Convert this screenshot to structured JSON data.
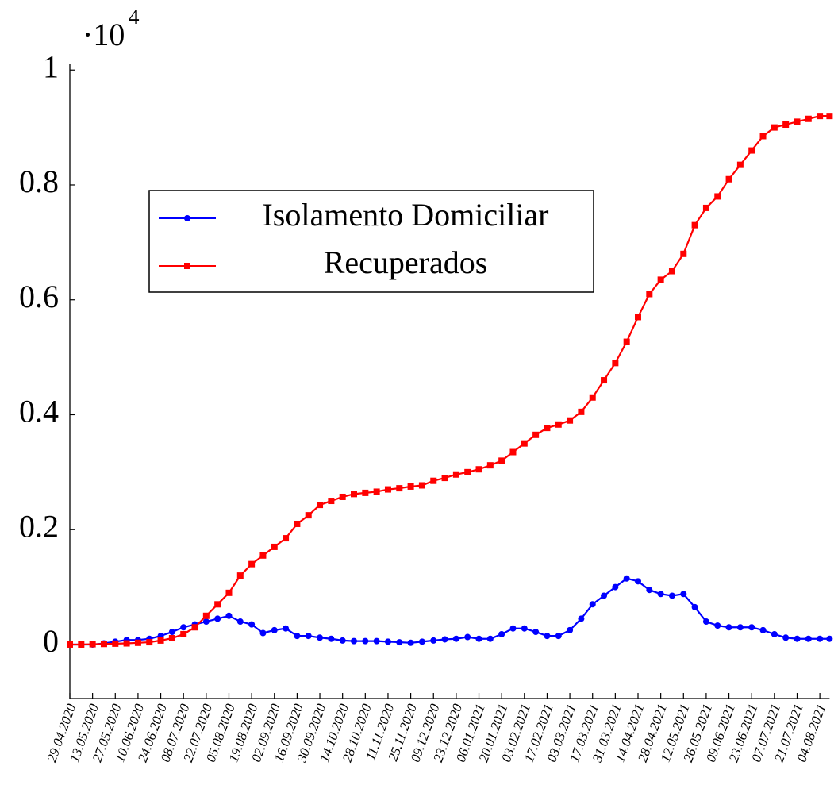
{
  "chart_data": {
    "type": "line",
    "y_multiplier": {
      "base": "·10",
      "exponent": "4"
    },
    "x": [
      "29.04.2020",
      "06.05.2020",
      "13.05.2020",
      "20.05.2020",
      "27.05.2020",
      "03.06.2020",
      "10.06.2020",
      "17.06.2020",
      "24.06.2020",
      "01.07.2020",
      "08.07.2020",
      "15.07.2020",
      "22.07.2020",
      "29.07.2020",
      "05.08.2020",
      "12.08.2020",
      "19.08.2020",
      "26.08.2020",
      "02.09.2020",
      "09.09.2020",
      "16.09.2020",
      "23.09.2020",
      "30.09.2020",
      "07.10.2020",
      "14.10.2020",
      "21.10.2020",
      "28.10.2020",
      "04.11.2020",
      "11.11.2020",
      "18.11.2020",
      "25.11.2020",
      "02.12.2020",
      "09.12.2020",
      "16.12.2020",
      "23.12.2020",
      "30.12.2020",
      "06.01.2021",
      "13.01.2021",
      "20.01.2021",
      "27.01.2021",
      "03.02.2021",
      "10.02.2021",
      "17.02.2021",
      "24.02.2021",
      "03.03.2021",
      "10.03.2021",
      "17.03.2021",
      "24.03.2021",
      "31.03.2021",
      "07.04.2021",
      "14.04.2021",
      "21.04.2021",
      "28.04.2021",
      "05.05.2021",
      "12.05.2021",
      "19.05.2021",
      "26.05.2021",
      "02.06.2021",
      "09.06.2021",
      "16.06.2021",
      "23.06.2021",
      "30.06.2021",
      "07.07.2021",
      "14.07.2021",
      "21.07.2021",
      "28.07.2021",
      "04.08.2021",
      "10.08.2021"
    ],
    "series": [
      {
        "name": "Isolamento Domiciliar",
        "color": "#0000ff",
        "marker": "circle",
        "values": [
          0,
          0,
          0,
          0.002,
          0.005,
          0.008,
          0.008,
          0.01,
          0.015,
          0.022,
          0.03,
          0.035,
          0.04,
          0.045,
          0.05,
          0.04,
          0.035,
          0.02,
          0.025,
          0.028,
          0.015,
          0.015,
          0.012,
          0.01,
          0.007,
          0.006,
          0.006,
          0.006,
          0.005,
          0.004,
          0.003,
          0.005,
          0.007,
          0.009,
          0.01,
          0.013,
          0.01,
          0.01,
          0.018,
          0.028,
          0.028,
          0.022,
          0.015,
          0.015,
          0.025,
          0.045,
          0.07,
          0.085,
          0.1,
          0.115,
          0.11,
          0.095,
          0.088,
          0.085,
          0.088,
          0.065,
          0.04,
          0.033,
          0.03,
          0.03,
          0.03,
          0.025,
          0.018,
          0.012,
          0.01,
          0.01,
          0.01,
          0.01
        ]
      },
      {
        "name": "Recuperados",
        "color": "#ff0000",
        "marker": "square",
        "values": [
          0,
          0,
          0.0005,
          0.001,
          0.0015,
          0.002,
          0.003,
          0.004,
          0.007,
          0.011,
          0.018,
          0.03,
          0.05,
          0.07,
          0.09,
          0.12,
          0.14,
          0.155,
          0.17,
          0.185,
          0.21,
          0.225,
          0.243,
          0.25,
          0.257,
          0.262,
          0.264,
          0.266,
          0.27,
          0.272,
          0.275,
          0.277,
          0.285,
          0.29,
          0.296,
          0.3,
          0.305,
          0.312,
          0.32,
          0.335,
          0.35,
          0.365,
          0.377,
          0.383,
          0.39,
          0.405,
          0.43,
          0.46,
          0.49,
          0.527,
          0.57,
          0.61,
          0.635,
          0.65,
          0.68,
          0.73,
          0.76,
          0.78,
          0.81,
          0.835,
          0.86,
          0.885,
          0.9,
          0.905,
          0.91,
          0.915,
          0.92,
          0.92
        ]
      }
    ],
    "xlim": [
      "29.04.2020",
      "10.08.2021"
    ],
    "xticks": [
      "29.04.2020",
      "13.05.2020",
      "27.05.2020",
      "10.06.2020",
      "24.06.2020",
      "08.07.2020",
      "22.07.2020",
      "05.08.2020",
      "19.08.2020",
      "02.09.2020",
      "16.09.2020",
      "30.09.2020",
      "14.10.2020",
      "28.10.2020",
      "11.11.2020",
      "25.11.2020",
      "09.12.2020",
      "23.12.2020",
      "06.01.2021",
      "20.01.2021",
      "03.02.2021",
      "17.02.2021",
      "03.03.2021",
      "17.03.2021",
      "31.03.2021",
      "14.04.2021",
      "28.04.2021",
      "12.05.2021",
      "26.05.2021",
      "09.06.2021",
      "23.06.2021",
      "07.07.2021",
      "21.07.2021",
      "04.08.2021"
    ],
    "ylim": [
      -0.094,
      1.01
    ],
    "yticks": [
      0,
      0.2,
      0.4,
      0.6,
      0.8,
      1
    ],
    "grid": false
  }
}
